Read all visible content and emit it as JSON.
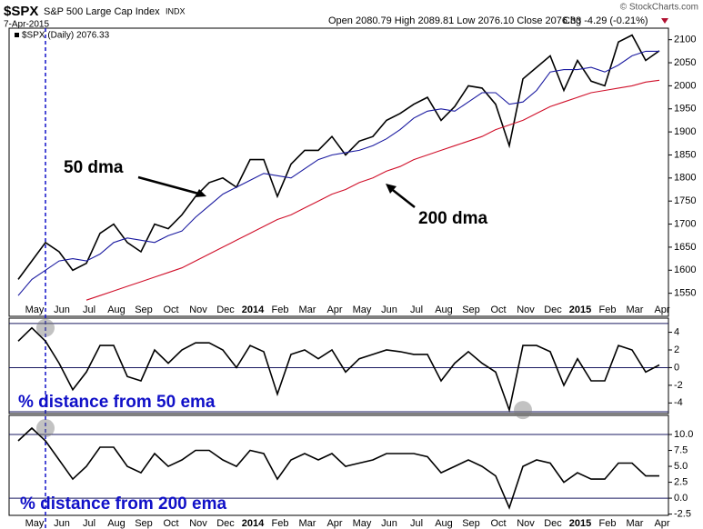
{
  "header": {
    "symbol": "$SPX",
    "name": "S&P 500 Large Cap Index",
    "exchange": "INDX",
    "date": "7-Apr-2015",
    "quote": "Open 2080.79 High 2089.81 Low 2076.10 Close 2076.33",
    "change": "Chg -4.29 (-0.21%)",
    "credit": "© StockCharts.com"
  },
  "chart_data": [
    {
      "type": "line",
      "categories": [
        null,
        "May",
        null,
        "Jun",
        null,
        "Jul",
        null,
        "Aug",
        null,
        "Sep",
        null,
        "Oct",
        null,
        "Nov",
        null,
        "Dec",
        null,
        "2014",
        null,
        "Feb",
        null,
        "Mar",
        null,
        "Apr",
        null,
        "May",
        null,
        "Jun",
        null,
        "Jul",
        null,
        "Aug",
        null,
        "Sep",
        null,
        "Oct",
        null,
        "Nov",
        null,
        "Dec",
        null,
        "2015",
        null,
        "Feb",
        null,
        "Mar",
        null,
        "Apr"
      ],
      "series": [
        {
          "name": "$SPX (Daily) 2076.33",
          "color": "#000000",
          "values": [
            1580,
            1620,
            1660,
            1640,
            1600,
            1615,
            1680,
            1700,
            1660,
            1640,
            1700,
            1690,
            1720,
            1760,
            1790,
            1800,
            1780,
            1840,
            1840,
            1760,
            1830,
            1860,
            1860,
            1890,
            1850,
            1880,
            1890,
            1925,
            1940,
            1960,
            1975,
            1925,
            1955,
            2000,
            1995,
            1960,
            1870,
            2015,
            2040,
            2065,
            1990,
            2055,
            2010,
            2000,
            2095,
            2110,
            2055,
            2076
          ]
        },
        {
          "name": "50 dma",
          "color": "#1a1aa0",
          "values": [
            1545,
            1580,
            1600,
            1620,
            1625,
            1620,
            1635,
            1660,
            1670,
            1665,
            1660,
            1675,
            1685,
            1715,
            1740,
            1765,
            1780,
            1795,
            1810,
            1805,
            1800,
            1820,
            1840,
            1850,
            1855,
            1860,
            1870,
            1885,
            1905,
            1930,
            1945,
            1950,
            1945,
            1965,
            1985,
            1985,
            1960,
            1965,
            1990,
            2030,
            2035,
            2035,
            2040,
            2030,
            2045,
            2065,
            2075,
            2075
          ]
        },
        {
          "name": "200 dma",
          "color": "#d0102a",
          "values": [
            null,
            null,
            null,
            null,
            null,
            1535,
            1545,
            1555,
            1565,
            1575,
            1585,
            1595,
            1605,
            1620,
            1635,
            1650,
            1665,
            1680,
            1695,
            1710,
            1720,
            1735,
            1750,
            1765,
            1775,
            1790,
            1800,
            1815,
            1825,
            1840,
            1850,
            1860,
            1870,
            1880,
            1890,
            1905,
            1915,
            1925,
            1940,
            1955,
            1965,
            1975,
            1985,
            1990,
            1995,
            2000,
            2008,
            2012
          ]
        }
      ],
      "ylim": [
        1500,
        2125
      ],
      "yticks": [
        1550,
        1600,
        1650,
        1700,
        1750,
        1800,
        1850,
        1900,
        1950,
        2000,
        2050,
        2100
      ]
    },
    {
      "type": "line",
      "title": "% distance from 50 ema",
      "series": [
        {
          "name": "% distance from 50 ema",
          "color": "#000000",
          "values": [
            3,
            4.5,
            3,
            0.5,
            -2.5,
            -0.5,
            2.5,
            2.5,
            -1,
            -1.5,
            2,
            0.5,
            2,
            2.8,
            2.8,
            2,
            0,
            2.5,
            1.8,
            -3,
            1.5,
            2,
            1,
            2,
            -0.5,
            1,
            1.5,
            2,
            1.8,
            1.5,
            1.5,
            -1.5,
            0.5,
            1.8,
            0.5,
            -0.5,
            -4.8,
            2.5,
            2.5,
            1.8,
            -2,
            1,
            -1.5,
            -1.5,
            2.5,
            2,
            -0.5,
            0.3
          ]
        }
      ],
      "ylim": [
        -5.2,
        5.6
      ],
      "yticks": [
        -4,
        -2,
        0,
        2,
        4
      ],
      "reference_lines": [
        5,
        0,
        -5
      ]
    },
    {
      "type": "line",
      "title": "% distance from 200 ema",
      "categories": [
        null,
        "May",
        null,
        "Jun",
        null,
        "Jul",
        null,
        "Aug",
        null,
        "Sep",
        null,
        "Oct",
        null,
        "Nov",
        null,
        "Dec",
        null,
        "2014",
        null,
        "Feb",
        null,
        "Mar",
        null,
        "Apr",
        null,
        "May",
        null,
        "Jun",
        null,
        "Jul",
        null,
        "Aug",
        null,
        "Sep",
        null,
        "Oct",
        null,
        "Nov",
        null,
        "Dec",
        null,
        "2015",
        null,
        "Feb",
        null,
        "Mar",
        null,
        "Apr"
      ],
      "series": [
        {
          "name": "% distance from 200 ema",
          "color": "#000000",
          "values": [
            9,
            11,
            9,
            6,
            3,
            5,
            8,
            8,
            5,
            4,
            7,
            5,
            6,
            7.5,
            7.5,
            6,
            5,
            7.5,
            7,
            3,
            6,
            7,
            6,
            7,
            5,
            5.5,
            6,
            7,
            7,
            7,
            6.5,
            4,
            5,
            6,
            5,
            3.5,
            -1.5,
            5,
            6,
            5.5,
            2.5,
            4,
            3,
            3,
            5.5,
            5.5,
            3.5,
            3.5
          ]
        }
      ],
      "ylim": [
        -2.7,
        13
      ],
      "yticks": [
        {
          "value": -2.5,
          "label": "-2.5"
        },
        {
          "value": 0,
          "label": "0.0"
        },
        {
          "value": 2.5,
          "label": "2.5"
        },
        {
          "value": 5,
          "label": "5.0"
        },
        {
          "value": 7.5,
          "label": "7.5"
        },
        {
          "value": 10,
          "label": "10.0"
        }
      ],
      "reference_lines": [
        10,
        0
      ]
    }
  ]
}
